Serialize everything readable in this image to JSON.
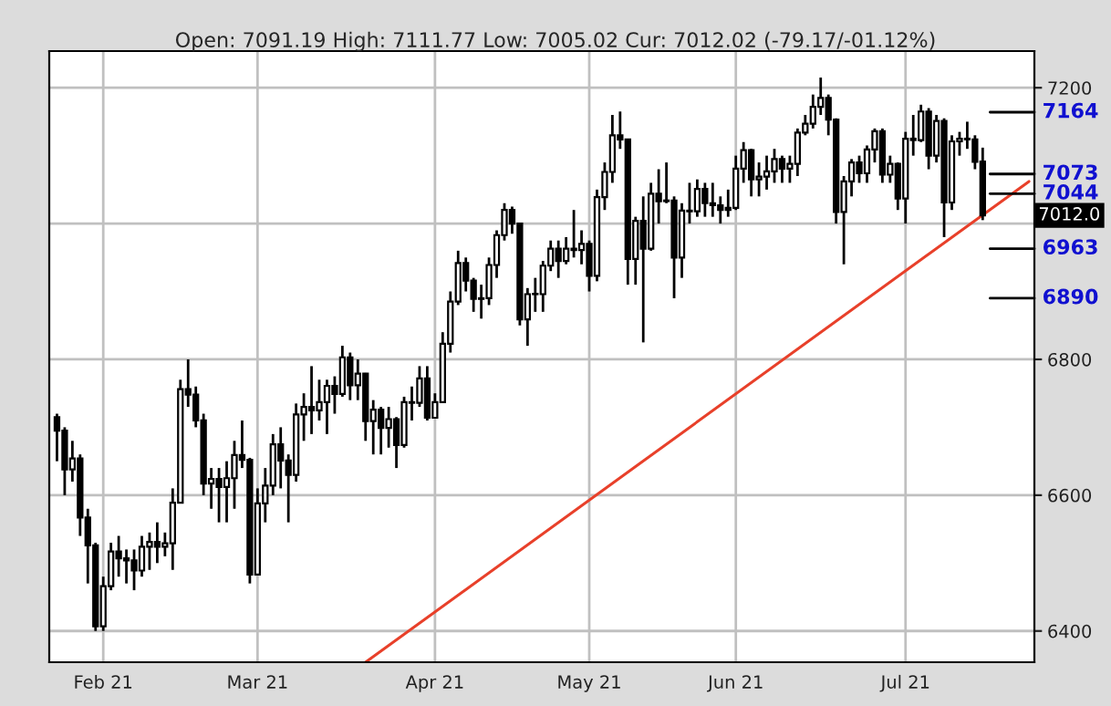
{
  "chart_data": {
    "type": "candlestick",
    "subtitle": "Open: 7091.19 High: 7111.77 Low: 7005.02 Cur: 7012.02 (-79.17/-01.12%)",
    "categories": [
      null,
      null,
      null,
      null,
      null,
      null,
      "Feb 21",
      null,
      null,
      null,
      null,
      null,
      null,
      null,
      null,
      null,
      null,
      null,
      null,
      null,
      null,
      null,
      null,
      null,
      null,
      null,
      "Mar 21",
      null,
      null,
      null,
      null,
      null,
      null,
      null,
      null,
      null,
      null,
      null,
      null,
      null,
      null,
      null,
      null,
      null,
      null,
      null,
      null,
      null,
      null,
      "Apr 21",
      null,
      null,
      null,
      null,
      null,
      null,
      null,
      null,
      null,
      null,
      null,
      null,
      null,
      null,
      null,
      null,
      null,
      null,
      null,
      "May 21",
      null,
      null,
      null,
      null,
      null,
      null,
      null,
      null,
      null,
      null,
      null,
      null,
      null,
      null,
      null,
      null,
      null,
      null,
      "Jun 21",
      null,
      null,
      null,
      null,
      null,
      null,
      null,
      null,
      null,
      null,
      null,
      null,
      null,
      null,
      null,
      null,
      null,
      null,
      null,
      null,
      null,
      "Jul 21",
      null,
      null,
      null,
      null,
      null,
      null,
      null,
      null,
      null,
      null,
      null,
      null,
      null,
      null,
      null,
      null
    ],
    "ohlc": [
      [
        6715,
        6720,
        6650,
        6695
      ],
      [
        6695,
        6700,
        6600,
        6638
      ],
      [
        6638,
        6680,
        6620,
        6654
      ],
      [
        6654,
        6660,
        6540,
        6567
      ],
      [
        6567,
        6580,
        6470,
        6526
      ],
      [
        6526,
        6530,
        6400,
        6407
      ],
      [
        6407,
        6480,
        6400,
        6466
      ],
      [
        6466,
        6530,
        6460,
        6517
      ],
      [
        6517,
        6540,
        6480,
        6507
      ],
      [
        6507,
        6520,
        6470,
        6504
      ],
      [
        6504,
        6520,
        6460,
        6489
      ],
      [
        6489,
        6540,
        6480,
        6524
      ],
      [
        6524,
        6545,
        6490,
        6531
      ],
      [
        6531,
        6560,
        6500,
        6524
      ],
      [
        6524,
        6545,
        6510,
        6529
      ],
      [
        6529,
        6610,
        6490,
        6589
      ],
      [
        6589,
        6770,
        6589,
        6756
      ],
      [
        6756,
        6800,
        6730,
        6748
      ],
      [
        6748,
        6760,
        6700,
        6710
      ],
      [
        6710,
        6720,
        6600,
        6617
      ],
      [
        6617,
        6640,
        6580,
        6624
      ],
      [
        6624,
        6640,
        6560,
        6612
      ],
      [
        6612,
        6650,
        6560,
        6625
      ],
      [
        6625,
        6680,
        6580,
        6659
      ],
      [
        6659,
        6710,
        6640,
        6652
      ],
      [
        6652,
        6655,
        6470,
        6483
      ],
      [
        6483,
        6610,
        6483,
        6588
      ],
      [
        6588,
        6640,
        6560,
        6614
      ],
      [
        6614,
        6690,
        6600,
        6675
      ],
      [
        6675,
        6700,
        6610,
        6651
      ],
      [
        6651,
        6660,
        6560,
        6630
      ],
      [
        6630,
        6735,
        6620,
        6719
      ],
      [
        6719,
        6750,
        6680,
        6730
      ],
      [
        6730,
        6790,
        6690,
        6725
      ],
      [
        6725,
        6770,
        6710,
        6737
      ],
      [
        6737,
        6770,
        6690,
        6761
      ],
      [
        6761,
        6775,
        6720,
        6749
      ],
      [
        6749,
        6820,
        6745,
        6803
      ],
      [
        6803,
        6810,
        6740,
        6762
      ],
      [
        6762,
        6800,
        6740,
        6779
      ],
      [
        6779,
        6780,
        6680,
        6709
      ],
      [
        6709,
        6740,
        6660,
        6726
      ],
      [
        6726,
        6730,
        6660,
        6699
      ],
      [
        6699,
        6730,
        6670,
        6712
      ],
      [
        6712,
        6715,
        6640,
        6674
      ],
      [
        6674,
        6745,
        6670,
        6737
      ],
      [
        6737,
        6760,
        6710,
        6736
      ],
      [
        6736,
        6790,
        6730,
        6772
      ],
      [
        6772,
        6790,
        6710,
        6714
      ],
      [
        6714,
        6750,
        6714,
        6737
      ],
      [
        6737,
        6840,
        6737,
        6823
      ],
      [
        6823,
        6900,
        6810,
        6885
      ],
      [
        6885,
        6960,
        6880,
        6942
      ],
      [
        6942,
        6950,
        6900,
        6916
      ],
      [
        6916,
        6920,
        6870,
        6889
      ],
      [
        6889,
        6910,
        6860,
        6890
      ],
      [
        6890,
        6950,
        6880,
        6939
      ],
      [
        6939,
        6990,
        6920,
        6983
      ],
      [
        6983,
        7030,
        6975,
        7020
      ],
      [
        7020,
        7025,
        6985,
        7000
      ],
      [
        7000,
        7000,
        6850,
        6859
      ],
      [
        6859,
        6905,
        6820,
        6896
      ],
      [
        6896,
        6920,
        6870,
        6896
      ],
      [
        6896,
        6945,
        6870,
        6938
      ],
      [
        6938,
        6975,
        6930,
        6963
      ],
      [
        6963,
        6975,
        6920,
        6945
      ],
      [
        6945,
        6980,
        6940,
        6963
      ],
      [
        6963,
        7020,
        6950,
        6961
      ],
      [
        6961,
        6990,
        6940,
        6970
      ],
      [
        6970,
        6975,
        6900,
        6923
      ],
      [
        6923,
        7050,
        6915,
        7039
      ],
      [
        7039,
        7090,
        7020,
        7076
      ],
      [
        7076,
        7160,
        7060,
        7130
      ],
      [
        7130,
        7165,
        7110,
        7124
      ],
      [
        7124,
        7124,
        6910,
        6948
      ],
      [
        6948,
        7010,
        6910,
        7004
      ],
      [
        7004,
        7040,
        6825,
        6963
      ],
      [
        6963,
        7060,
        6960,
        7044
      ],
      [
        7044,
        7080,
        7000,
        7033
      ],
      [
        7033,
        7090,
        7030,
        7034
      ],
      [
        7034,
        7040,
        6890,
        6950
      ],
      [
        6950,
        7030,
        6920,
        7019
      ],
      [
        7019,
        7060,
        7000,
        7018
      ],
      [
        7018,
        7065,
        7010,
        7051
      ],
      [
        7051,
        7060,
        7010,
        7030
      ],
      [
        7030,
        7060,
        7010,
        7027
      ],
      [
        7027,
        7040,
        7000,
        7020
      ],
      [
        7020,
        7050,
        7010,
        7023
      ],
      [
        7023,
        7100,
        7020,
        7081
      ],
      [
        7081,
        7120,
        7060,
        7108
      ],
      [
        7108,
        7110,
        7040,
        7065
      ],
      [
        7065,
        7090,
        7040,
        7069
      ],
      [
        7069,
        7100,
        7050,
        7077
      ],
      [
        7077,
        7110,
        7060,
        7095
      ],
      [
        7095,
        7100,
        7060,
        7081
      ],
      [
        7081,
        7100,
        7060,
        7088
      ],
      [
        7088,
        7140,
        7070,
        7134
      ],
      [
        7134,
        7160,
        7130,
        7147
      ],
      [
        7147,
        7190,
        7140,
        7172
      ],
      [
        7172,
        7215,
        7160,
        7185
      ],
      [
        7185,
        7190,
        7130,
        7153
      ],
      [
        7153,
        7155,
        7000,
        7017
      ],
      [
        7017,
        7070,
        6940,
        7062
      ],
      [
        7062,
        7095,
        7040,
        7090
      ],
      [
        7090,
        7100,
        7060,
        7074
      ],
      [
        7074,
        7115,
        7060,
        7109
      ],
      [
        7109,
        7140,
        7090,
        7136
      ],
      [
        7136,
        7140,
        7060,
        7072
      ],
      [
        7072,
        7100,
        7060,
        7088
      ],
      [
        7088,
        7090,
        7020,
        7037
      ],
      [
        7037,
        7135,
        7000,
        7125
      ],
      [
        7125,
        7160,
        7100,
        7123
      ],
      [
        7123,
        7175,
        7120,
        7165
      ],
      [
        7165,
        7170,
        7080,
        7100
      ],
      [
        7100,
        7160,
        7090,
        7151
      ],
      [
        7151,
        7155,
        6980,
        7031
      ],
      [
        7031,
        7130,
        7020,
        7121
      ],
      [
        7121,
        7135,
        7100,
        7125
      ],
      [
        7125,
        7150,
        7110,
        7124
      ],
      [
        7124,
        7130,
        7080,
        7091
      ],
      [
        7091.19,
        7111.77,
        7005.02,
        7012.02
      ],
      null,
      null,
      null,
      null,
      null,
      null
    ],
    "series": [
      {
        "type": "line",
        "color": "#e8402a",
        "values": [
          null,
          null,
          null,
          null,
          null,
          null,
          null,
          null,
          null,
          null,
          null,
          null,
          null,
          null,
          null,
          null,
          null,
          null,
          null,
          null,
          null,
          null,
          null,
          null,
          null,
          null,
          null,
          null,
          null,
          null,
          null,
          null,
          null,
          null,
          null,
          null,
          null,
          null,
          null,
          null,
          6354,
          null,
          null,
          null,
          null,
          null,
          null,
          null,
          null,
          null,
          null,
          null,
          null,
          null,
          null,
          null,
          null,
          null,
          null,
          null,
          null,
          null,
          null,
          null,
          null,
          null,
          null,
          null,
          null,
          null,
          null,
          null,
          null,
          null,
          null,
          null,
          null,
          null,
          null,
          null,
          null,
          null,
          null,
          null,
          null,
          null,
          null,
          null,
          null,
          null,
          null,
          null,
          null,
          null,
          null,
          null,
          null,
          null,
          null,
          null,
          null,
          null,
          null,
          null,
          null,
          null,
          null,
          null,
          null,
          null,
          null,
          null,
          null,
          null,
          null,
          null,
          null,
          null,
          null,
          null,
          null,
          null,
          null,
          null,
          null,
          null,
          7062
        ]
      }
    ],
    "ylim": [
      6354,
      7254
    ],
    "yticks": [
      6400,
      6600,
      6800,
      {
        "value": 7000,
        "label": null
      },
      7200
    ],
    "grid": true,
    "ref_lines": [
      {
        "axis": "y",
        "value": 7164,
        "label": "7164",
        "color": "#000000"
      },
      {
        "axis": "y",
        "value": 7073,
        "label": "7073",
        "color": "#000000"
      },
      {
        "axis": "y",
        "value": 7044,
        "label": "7044",
        "color": "#000000"
      },
      {
        "axis": "y",
        "value": 6963,
        "label": "6963",
        "color": "#000000"
      },
      {
        "axis": "y",
        "value": 6890,
        "label": "6890",
        "color": "#000000"
      }
    ],
    "annotations": [
      "7012.0"
    ]
  }
}
